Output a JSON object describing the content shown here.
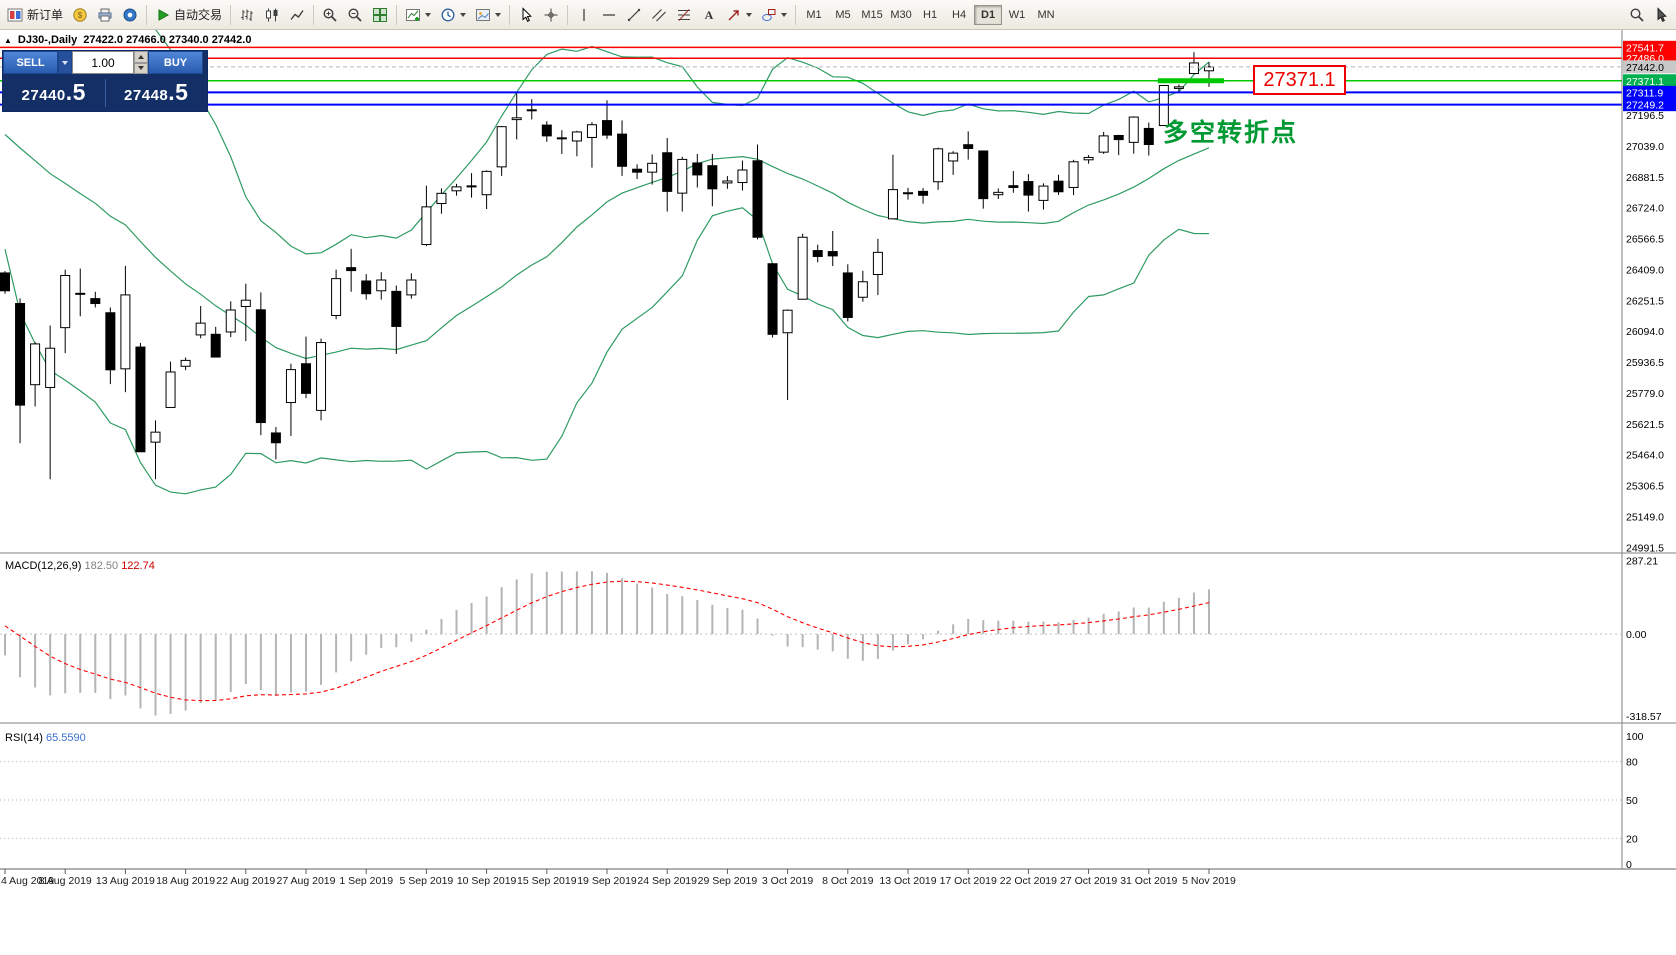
{
  "header": {
    "collapse_icon": "▲",
    "symbol_period": "DJ30-,Daily",
    "ohlc": "27422.0 27466.0 27340.0 27442.0"
  },
  "toolbar": {
    "new_order_label": "新订单",
    "autotrade_label": "自动交易",
    "timeframes": [
      "M1",
      "M5",
      "M15",
      "M30",
      "H1",
      "H4",
      "D1",
      "W1",
      "MN"
    ],
    "active_timeframe": "D1"
  },
  "trade_panel": {
    "sell_label": "SELL",
    "buy_label": "BUY",
    "volume": "1.00",
    "sell_price_main": "27440",
    "sell_price_frac": ".5",
    "buy_price_main": "27448",
    "buy_price_frac": ".5"
  },
  "annotations": {
    "price_callout": "27371.1",
    "pivot_note": "多空转折点"
  },
  "chart_data": {
    "type": "candlestick",
    "symbol": "DJ30-",
    "period": "Daily",
    "last_ohlc": {
      "open": 27422.0,
      "high": 27466.0,
      "low": 27340.0,
      "close": 27442.0
    },
    "x_labels": [
      {
        "i": 0,
        "t": "4 Aug 2019"
      },
      {
        "i": 4,
        "t": "8 Aug 2019"
      },
      {
        "i": 8,
        "t": "13 Aug 2019"
      },
      {
        "i": 12,
        "t": "18 Aug 2019"
      },
      {
        "i": 16,
        "t": "22 Aug 2019"
      },
      {
        "i": 20,
        "t": "27 Aug 2019"
      },
      {
        "i": 24,
        "t": "1 Sep 2019"
      },
      {
        "i": 28,
        "t": "5 Sep 2019"
      },
      {
        "i": 32,
        "t": "10 Sep 2019"
      },
      {
        "i": 36,
        "t": "15 Sep 2019"
      },
      {
        "i": 40,
        "t": "19 Sep 2019"
      },
      {
        "i": 44,
        "t": "24 Sep 2019"
      },
      {
        "i": 48,
        "t": "29 Sep 2019"
      },
      {
        "i": 52,
        "t": "3 Oct 2019"
      },
      {
        "i": 56,
        "t": "8 Oct 2019"
      },
      {
        "i": 60,
        "t": "13 Oct 2019"
      },
      {
        "i": 64,
        "t": "17 Oct 2019"
      },
      {
        "i": 68,
        "t": "22 Oct 2019"
      },
      {
        "i": 72,
        "t": "27 Oct 2019"
      },
      {
        "i": 76,
        "t": "31 Oct 2019"
      },
      {
        "i": 80,
        "t": "5 Nov 2019"
      }
    ],
    "y_labels": [
      27196.5,
      27039.0,
      26881.5,
      26724.0,
      26566.5,
      26409.0,
      26251.5,
      26094.0,
      25936.5,
      25779.0,
      25621.5,
      25464.0,
      25306.5,
      25149.0,
      24991.5
    ],
    "hlines": [
      {
        "price": 27541.7,
        "color": "#ff0000",
        "width": 1.5,
        "tag_bg": "#ff0000",
        "tag_fg": "#ffffff"
      },
      {
        "price": 27486.0,
        "color": "#ff0000",
        "width": 1.5,
        "tag_bg": "#ff0000",
        "tag_fg": "#ffffff"
      },
      {
        "price": 27442.0,
        "color": "#b8b8b8",
        "width": 1,
        "dash": "4,3",
        "tag_bg": "#c8c8c8",
        "tag_fg": "#000000"
      },
      {
        "price": 27371.1,
        "color": "#00c800",
        "width": 1.5,
        "tag_bg": "#00b050",
        "tag_fg": "#ffffff",
        "thick_from": 76.6,
        "thick_to": 81.0
      },
      {
        "price": 27311.9,
        "color": "#0000ff",
        "width": 2,
        "tag_bg": "#0000ff",
        "tag_fg": "#ffffff"
      },
      {
        "price": 27249.2,
        "color": "#0000ff",
        "width": 2,
        "tag_bg": "#0000ff",
        "tag_fg": "#ffffff"
      }
    ],
    "candles": [
      [
        26391,
        26400,
        26285,
        26300
      ],
      [
        26235,
        26261,
        25523,
        25717
      ],
      [
        25821,
        26038,
        25710,
        26029
      ],
      [
        25807,
        26123,
        25339,
        26007
      ],
      [
        26112,
        26408,
        25982,
        26378
      ],
      [
        26284,
        26413,
        26170,
        26287
      ],
      [
        26260,
        26295,
        26215,
        26235
      ],
      [
        26188,
        26215,
        25824,
        25897
      ],
      [
        25902,
        26427,
        25783,
        26279
      ],
      [
        26013,
        26034,
        25479,
        25479
      ],
      [
        25528,
        25639,
        25339,
        25579
      ],
      [
        25705,
        25939,
        25705,
        25886
      ],
      [
        25915,
        25960,
        25895,
        25945
      ],
      [
        26075,
        26222,
        26058,
        26135
      ],
      [
        26078,
        26116,
        25962,
        25962
      ],
      [
        26090,
        26246,
        26064,
        26202
      ],
      [
        26220,
        26336,
        26043,
        26252
      ],
      [
        26203,
        26292,
        25564,
        25628
      ],
      [
        25575,
        25605,
        25440,
        25525
      ],
      [
        25730,
        25928,
        25560,
        25898
      ],
      [
        25928,
        26066,
        25752,
        25777
      ],
      [
        25690,
        26056,
        25639,
        26036
      ],
      [
        26174,
        26408,
        26155,
        26362
      ],
      [
        26418,
        26514,
        26295,
        26403
      ],
      [
        26350,
        26385,
        26255,
        26285
      ],
      [
        26300,
        26395,
        26255,
        26355
      ],
      [
        26297,
        26327,
        25978,
        26118
      ],
      [
        26279,
        26389,
        26260,
        26355
      ],
      [
        26536,
        26836,
        26528,
        26728
      ],
      [
        26745,
        26822,
        26693,
        26797
      ],
      [
        26810,
        26845,
        26785,
        26830
      ],
      [
        26834,
        26900,
        26775,
        26835
      ],
      [
        26790,
        26914,
        26717,
        26909
      ],
      [
        26932,
        27140,
        26886,
        27137
      ],
      [
        27173,
        27306,
        27072,
        27182
      ],
      [
        27223,
        27277,
        27174,
        27219
      ],
      [
        27145,
        27165,
        27060,
        27090
      ],
      [
        27080,
        27119,
        26998,
        27076
      ],
      [
        27064,
        27116,
        26986,
        27110
      ],
      [
        27082,
        27160,
        26928,
        27147
      ],
      [
        27168,
        27272,
        27075,
        27094
      ],
      [
        27099,
        27169,
        26886,
        26935
      ],
      [
        26920,
        26945,
        26870,
        26905
      ],
      [
        26905,
        26996,
        26842,
        26950
      ],
      [
        27004,
        27079,
        26704,
        26807
      ],
      [
        26798,
        26983,
        26704,
        26970
      ],
      [
        26952,
        26998,
        26827,
        26891
      ],
      [
        26938,
        26998,
        26731,
        26820
      ],
      [
        26850,
        26885,
        26820,
        26860
      ],
      [
        26852,
        26964,
        26811,
        26916
      ],
      [
        26963,
        27046,
        26562,
        26573
      ],
      [
        26438,
        26440,
        26062,
        26078
      ],
      [
        26086,
        26205,
        25743,
        26201
      ],
      [
        26257,
        26591,
        26255,
        26573
      ],
      [
        26505,
        26535,
        26445,
        26475
      ],
      [
        26500,
        26605,
        26426,
        26478
      ],
      [
        26391,
        26435,
        26144,
        26164
      ],
      [
        26267,
        26402,
        26244,
        26346
      ],
      [
        26383,
        26565,
        26278,
        26496
      ],
      [
        26667,
        26994,
        26665,
        26816
      ],
      [
        26795,
        26825,
        26765,
        26800
      ],
      [
        26807,
        26824,
        26744,
        26787
      ],
      [
        26856,
        27030,
        26815,
        27024
      ],
      [
        26962,
        27012,
        26891,
        27002
      ],
      [
        27045,
        27113,
        26969,
        27026
      ],
      [
        27013,
        27015,
        26719,
        26770
      ],
      [
        26790,
        26822,
        26768,
        26802
      ],
      [
        26836,
        26911,
        26800,
        26827
      ],
      [
        26857,
        26895,
        26704,
        26788
      ],
      [
        26761,
        26848,
        26714,
        26834
      ],
      [
        26859,
        26892,
        26789,
        26805
      ],
      [
        26827,
        26968,
        26788,
        26958
      ],
      [
        26968,
        26992,
        26948,
        26980
      ],
      [
        27007,
        27110,
        26998,
        27090
      ],
      [
        27092,
        27095,
        26992,
        27071
      ],
      [
        27057,
        27190,
        26999,
        27186
      ],
      [
        27128,
        27158,
        26990,
        27046
      ],
      [
        27143,
        27347,
        27140,
        27347
      ],
      [
        27332,
        27352,
        27312,
        27340
      ],
      [
        27408,
        27517,
        27406,
        27462
      ],
      [
        27422,
        27466,
        27340,
        27442
      ]
    ],
    "warmup_closes": [
      26717,
      26786,
      26966,
      26922,
      26806,
      26783,
      26860,
      27088,
      27332,
      27333,
      27359,
      27335,
      27220,
      27222,
      27154,
      27171,
      27202,
      27270,
      27269,
      27192,
      27140,
      27198,
      27221,
      26864,
      26583,
      26485
    ],
    "indicators": {
      "bollinger": {
        "period": 20,
        "deviation": 2,
        "color": "#2e9b62"
      },
      "macd": {
        "name": "MACD(12,26,9)",
        "main_value": "182.50",
        "signal_value": "122.74",
        "scale_labels": [
          "287.21",
          "0.00",
          "-318.57"
        ],
        "scale_values": [
          287.21,
          0,
          -318.57
        ],
        "hist_color": "#b4b4b4",
        "signal_color": "#ff0000"
      },
      "rsi": {
        "name": "RSI(14)",
        "value": "65.5590",
        "levels": [
          100,
          80,
          50,
          20,
          0
        ],
        "color": "#3c6fd1"
      }
    }
  }
}
